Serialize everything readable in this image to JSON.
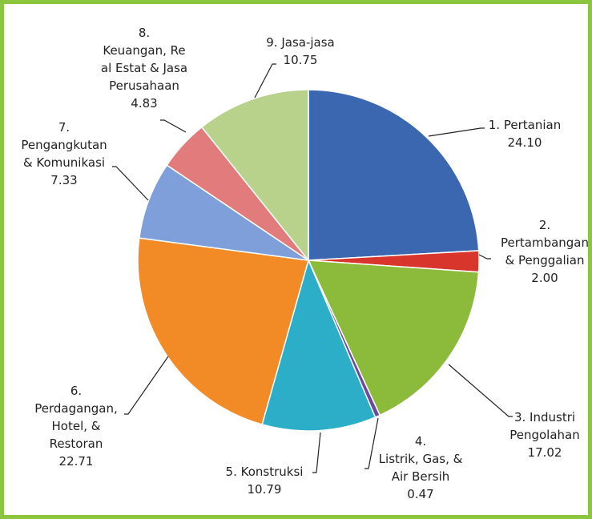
{
  "chart_data": {
    "type": "pie",
    "categories": [
      "1. Pertanian",
      "2.\nPertambangan\n& Penggalian",
      "3. Industri\nPengolahan",
      "4.\nListrik, Gas, &\nAir Bersih",
      "5. Konstruksi",
      "6.\nPerdagangan,\nHotel, &\nRestoran",
      "7.\nPengangkutan\n& Komunikasi",
      "8.\nKeuangan, Re\nal Estat & Jasa\nPerusahaan",
      "9. Jasa-jasa"
    ],
    "values": [
      24.1,
      2,
      17.02,
      0.47,
      10.79,
      22.71,
      7.33,
      4.83,
      10.75
    ],
    "value_labels": [
      "24.10",
      "2.00",
      "17.02",
      "0.47",
      "10.79",
      "22.71",
      "7.33",
      "4.83",
      "10.75"
    ],
    "colors": [
      "#3b67b1",
      "#d8352c",
      "#8cbb3b",
      "#6a4aa0",
      "#2caec9",
      "#f28b25",
      "#7e9fd9",
      "#e27b7b",
      "#b8d28b"
    ]
  }
}
